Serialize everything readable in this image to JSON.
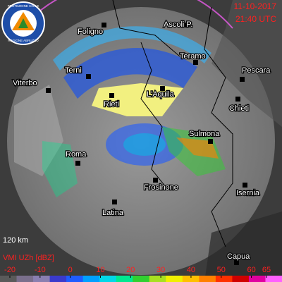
{
  "header": {
    "date": "11-10-2017",
    "time": "21:40 UTC"
  },
  "logo": {
    "top": "PROTEZIONE CIVILE",
    "bottom": "REGIONE ABRUZZO"
  },
  "cities": [
    "Foligno",
    "Ascoli P.",
    "Teramo",
    "Pescara",
    "Terni",
    "Viterbo",
    "Rieti",
    "L'Aquila",
    "Chieti",
    "Sulmona",
    "Roma",
    "Frosinone",
    "Isernia",
    "Latina",
    "Capua"
  ],
  "scale_label": "120 km",
  "legend": {
    "title": "VMI UZh [dBZ]",
    "ticks": [
      -20,
      -10,
      0,
      10,
      20,
      30,
      40,
      50,
      60,
      65
    ],
    "colors": [
      "#5a5a5a",
      "#7a6f8c",
      "#8a7fb0",
      "#3a3acc",
      "#1f5cff",
      "#00a0ff",
      "#00d8e8",
      "#00e890",
      "#30d030",
      "#a8e020",
      "#f0f000",
      "#ffc000",
      "#ff8000",
      "#ff3000",
      "#d00000",
      "#e000a0",
      "#ff60ff"
    ]
  }
}
